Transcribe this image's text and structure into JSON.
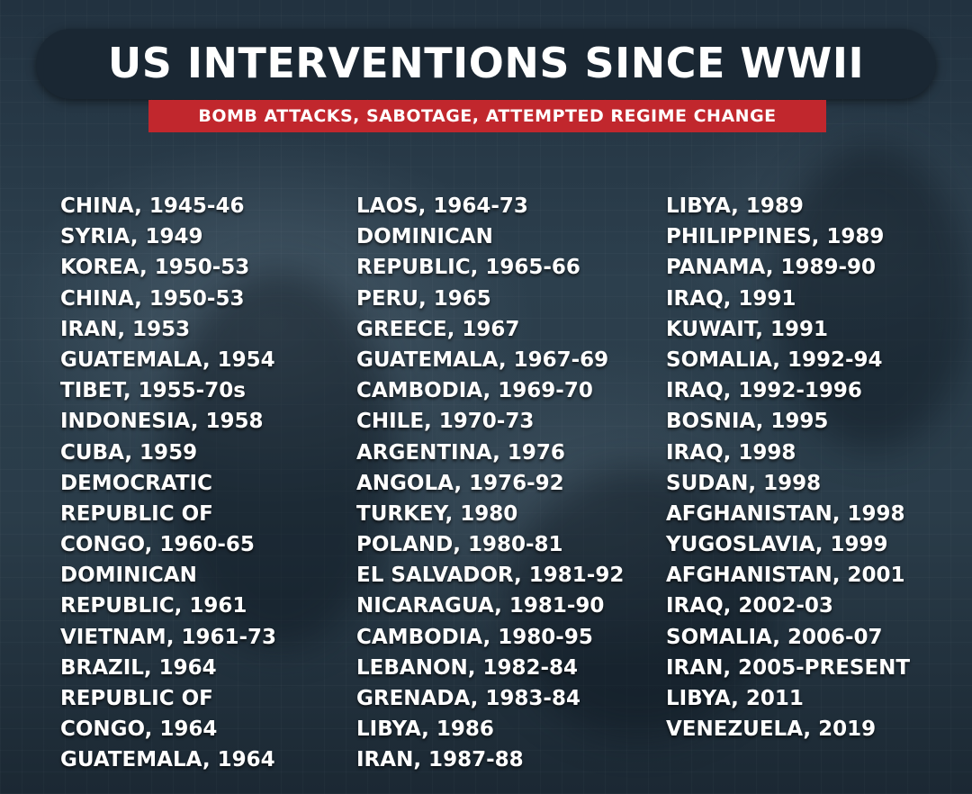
{
  "header": {
    "title": "US INTERVENTIONS SINCE WWII",
    "subtitle": "BOMB ATTACKS, SABOTAGE, ATTEMPTED REGIME CHANGE"
  },
  "colors": {
    "title_pill": "#1a2733",
    "subtitle_bar": "#c1272d",
    "background": "#263846",
    "text": "#ffffff"
  },
  "columns": [
    [
      "CHINA, 1945-46",
      "SYRIA, 1949",
      "KOREA, 1950-53",
      "CHINA, 1950-53",
      "IRAN, 1953",
      "GUATEMALA, 1954",
      "TIBET, 1955-70s",
      "INDONESIA, 1958",
      "CUBA, 1959",
      "DEMOCRATIC",
      "REPUBLIC OF",
      "CONGO, 1960-65",
      "DOMINICAN",
      "REPUBLIC, 1961",
      "VIETNAM, 1961-73",
      "BRAZIL, 1964",
      "REPUBLIC OF",
      "CONGO, 1964",
      "GUATEMALA, 1964"
    ],
    [
      "LAOS, 1964-73",
      "DOMINICAN",
      "REPUBLIC, 1965-66",
      "PERU, 1965",
      "GREECE, 1967",
      "GUATEMALA, 1967-69",
      "CAMBODIA, 1969-70",
      "CHILE, 1970-73",
      "ARGENTINA, 1976",
      "ANGOLA, 1976-92",
      "TURKEY, 1980",
      "POLAND, 1980-81",
      "EL SALVADOR, 1981-92",
      "NICARAGUA, 1981-90",
      "CAMBODIA, 1980-95",
      "LEBANON, 1982-84",
      "GRENADA, 1983-84",
      "LIBYA, 1986",
      "IRAN, 1987-88"
    ],
    [
      "LIBYA, 1989",
      "PHILIPPINES, 1989",
      "PANAMA, 1989-90",
      "IRAQ, 1991",
      "KUWAIT, 1991",
      "SOMALIA, 1992-94",
      "IRAQ, 1992-1996",
      "BOSNIA, 1995",
      "IRAQ, 1998",
      "SUDAN, 1998",
      "AFGHANISTAN, 1998",
      "YUGOSLAVIA, 1999",
      "AFGHANISTAN, 2001",
      "IRAQ, 2002-03",
      "SOMALIA, 2006-07",
      "IRAN, 2005-PRESENT",
      "LIBYA, 2011",
      "VENEZUELA, 2019"
    ]
  ]
}
